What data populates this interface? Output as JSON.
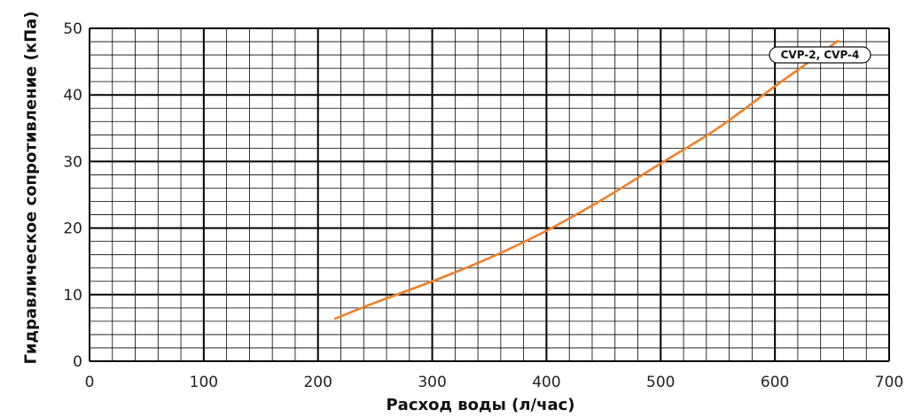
{
  "chart_data": {
    "type": "line",
    "xlabel": "Расход воды (л/час)",
    "ylabel": "Гидравлическое сопротивление (кПа)",
    "xlim": [
      0,
      700
    ],
    "ylim": [
      0,
      50
    ],
    "x_ticks": [
      "0",
      "100",
      "200",
      "300",
      "400",
      "500",
      "600",
      "700"
    ],
    "y_ticks": [
      "0",
      "10",
      "20",
      "30",
      "40",
      "50"
    ],
    "grid": true,
    "legend_position": "top-right",
    "series": [
      {
        "name": "CVP-2, CVP-4",
        "color": "#f07f2a",
        "x": [
          215,
          250,
          300,
          350,
          400,
          450,
          500,
          550,
          600,
          640,
          655
        ],
        "y": [
          6.4,
          8.8,
          12.0,
          15.5,
          19.6,
          24.4,
          29.7,
          35.0,
          41.3,
          46.2,
          48.1
        ]
      }
    ]
  }
}
